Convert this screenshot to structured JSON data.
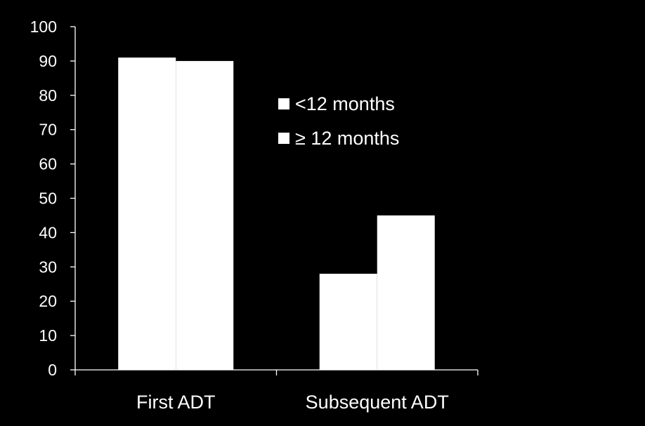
{
  "chart_data": {
    "type": "bar",
    "categories": [
      "First ADT",
      "Subsequent ADT"
    ],
    "series": [
      {
        "name": "<12 months",
        "values": [
          91,
          28
        ]
      },
      {
        "name": "≥ 12 months",
        "values": [
          90,
          45
        ]
      }
    ],
    "ylim": [
      0,
      100
    ],
    "yticks": [
      0,
      10,
      20,
      30,
      40,
      50,
      60,
      70,
      80,
      90,
      100
    ],
    "title": "",
    "xlabel": "",
    "ylabel": "",
    "legend_position": "upper-right inside plot",
    "grid": false,
    "colors": {
      "background": "#000000",
      "axis": "#ffffff",
      "text": "#ffffff",
      "bar": "#ffffff"
    }
  }
}
